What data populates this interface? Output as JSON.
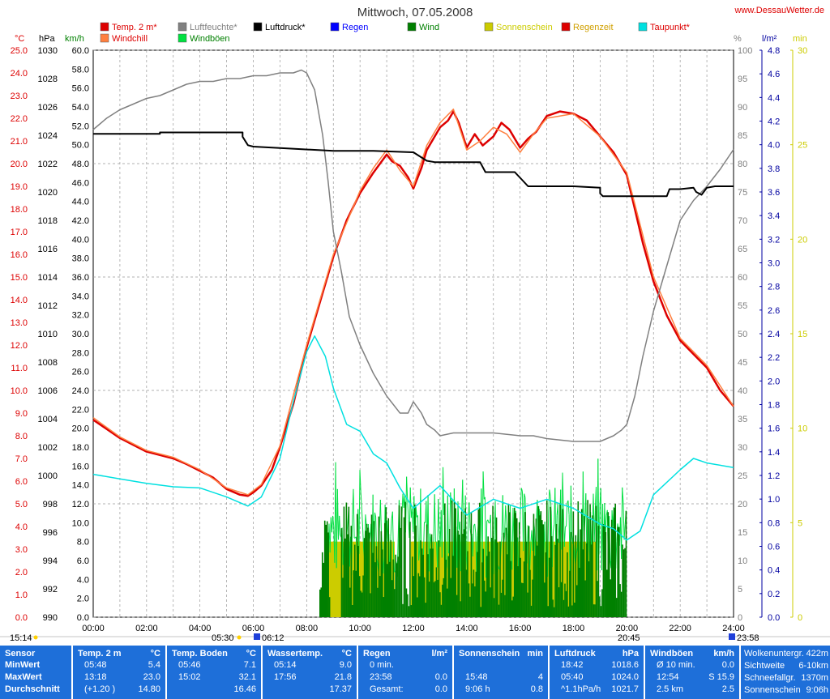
{
  "title": "Mittwoch, 07.05.2008",
  "site": "www.DessauWetter.de",
  "legend": [
    {
      "label": "Temp. 2 m*",
      "color": "#dd0000",
      "text_color": "#dd0000"
    },
    {
      "label": "Windchill",
      "color": "#ff8040",
      "text_color": "#dd0000"
    },
    {
      "label": "Luftfeuchte*",
      "color": "#808080",
      "text_color": "#808080"
    },
    {
      "label": "Windböen",
      "color": "#00e040",
      "text_color": "#008000"
    },
    {
      "label": "Luftdruck*",
      "color": "#000000",
      "text_color": "#000000"
    },
    {
      "label": "Regen",
      "color": "#0000ff",
      "text_color": "#0000ff"
    },
    {
      "label": "Wind",
      "color": "#008000",
      "text_color": "#008000"
    },
    {
      "label": "Sonnenschein",
      "color": "#cccc00",
      "text_color": "#cccc00"
    },
    {
      "label": "Regenzeit",
      "color": "#dd0000",
      "text_color": "#d0a000"
    },
    {
      "label": "Taupunkt*",
      "color": "#00e0e0",
      "text_color": "#dd0000"
    }
  ],
  "axis_units": {
    "temp": "°C",
    "pressure": "hPa",
    "wind": "km/h",
    "humidity": "%",
    "rain": "l/m²",
    "minutes": "min"
  },
  "axes": {
    "temp": {
      "min": 0.0,
      "max": 25.0,
      "step": 1.0,
      "color": "#dd0000"
    },
    "pressure": {
      "min": 990,
      "max": 1030,
      "step": 2,
      "color": "#000000"
    },
    "wind": {
      "min": 0.0,
      "max": 60.0,
      "step": 2.0,
      "color": "#000000"
    },
    "humidity": {
      "min": 0,
      "max": 100,
      "step": 5,
      "color": "#808080"
    },
    "rain": {
      "min": 0.0,
      "max": 4.8,
      "step": 0.2,
      "color": "#0000a0"
    },
    "minutes": {
      "min": 0,
      "max": 30,
      "step": 5,
      "color": "#cccc00"
    }
  },
  "x_ticks": [
    "00:00",
    "02:00",
    "04:00",
    "06:00",
    "08:00",
    "10:00",
    "12:00",
    "14:00",
    "16:00",
    "18:00",
    "20:00",
    "22:00",
    "24:00"
  ],
  "sun_markers": {
    "moonrise": "15:14",
    "sunrise": "05:30",
    "sunrise2": "06:12",
    "sunset": "20:45",
    "moonset": "23:58"
  },
  "chart_data": {
    "type": "line",
    "x_unit": "hours",
    "series": [
      {
        "name": "Temp. 2 m*",
        "axis": "temp",
        "color": "#dd0000",
        "x": [
          0,
          0.5,
          1,
          1.5,
          2,
          2.5,
          3,
          3.5,
          4,
          4.5,
          5,
          5.5,
          5.8,
          6,
          6.3,
          6.7,
          7,
          7.5,
          8,
          8.5,
          9,
          9.5,
          10,
          10.5,
          11,
          11.2,
          11.5,
          11.8,
          12,
          12.3,
          12.5,
          13,
          13.3,
          13.5,
          13.7,
          14,
          14.3,
          14.6,
          15,
          15.3,
          15.6,
          16,
          16.3,
          16.6,
          17,
          17.5,
          18,
          18.5,
          19,
          19.5,
          20,
          20.3,
          20.6,
          21,
          21.5,
          22,
          22.5,
          23,
          23.5,
          24
        ],
        "y": [
          8.7,
          8.3,
          7.9,
          7.6,
          7.3,
          7.15,
          7.0,
          6.75,
          6.45,
          6.15,
          5.65,
          5.4,
          5.35,
          5.5,
          5.8,
          6.5,
          7.5,
          9.4,
          11.9,
          13.9,
          15.9,
          17.5,
          18.7,
          19.6,
          20.4,
          20.1,
          19.9,
          19.4,
          18.9,
          19.8,
          20.6,
          21.6,
          21.9,
          22.3,
          21.8,
          20.7,
          21.3,
          20.8,
          21.2,
          21.8,
          21.5,
          20.7,
          21.1,
          21.4,
          22.1,
          22.3,
          22.2,
          21.9,
          21.2,
          20.5,
          19.5,
          18.0,
          16.5,
          14.8,
          13.3,
          12.2,
          11.6,
          11.0,
          10.0,
          9.3
        ]
      },
      {
        "name": "Windchill",
        "axis": "temp",
        "color": "#ff8040",
        "x": [
          0,
          1,
          2,
          3,
          4,
          5,
          5.8,
          6.3,
          7,
          8,
          9,
          10,
          10.5,
          11,
          11.5,
          12,
          12.5,
          13,
          13.5,
          14,
          14.5,
          15,
          15.5,
          16,
          16.5,
          17,
          18,
          19,
          20,
          21,
          22,
          23,
          24
        ],
        "y": [
          8.8,
          7.95,
          7.35,
          7.05,
          6.5,
          5.7,
          5.4,
          5.85,
          7.55,
          12.0,
          16.0,
          18.8,
          19.8,
          20.6,
          19.7,
          19.0,
          20.8,
          21.8,
          22.4,
          20.6,
          21.0,
          21.6,
          21.3,
          20.5,
          21.3,
          22.0,
          22.2,
          21.2,
          19.6,
          15.0,
          12.3,
          11.1,
          9.3
        ]
      },
      {
        "name": "Taupunkt*",
        "axis": "temp",
        "color": "#00e0e0",
        "x": [
          0,
          1,
          2,
          3,
          4,
          5,
          5.8,
          6.3,
          7,
          7.5,
          8,
          8.3,
          8.7,
          9,
          9.5,
          10,
          10.5,
          11,
          11.5,
          12,
          12.5,
          13,
          14,
          15,
          16,
          17,
          18,
          19,
          19.5,
          20,
          20.5,
          21,
          22,
          22.5,
          23,
          24
        ],
        "y": [
          6.3,
          6.1,
          5.9,
          5.75,
          5.7,
          5.3,
          4.9,
          5.3,
          7.0,
          9.5,
          11.7,
          12.4,
          11.5,
          10.1,
          8.5,
          8.2,
          7.2,
          6.8,
          5.7,
          4.8,
          5.3,
          5.8,
          4.5,
          5.2,
          4.8,
          5.2,
          4.8,
          4.1,
          3.9,
          3.4,
          3.8,
          5.4,
          6.5,
          7.0,
          6.8,
          6.6
        ]
      },
      {
        "name": "Luftfeuchte*",
        "axis": "humidity",
        "color": "#808080",
        "x": [
          0,
          0.5,
          1,
          1.5,
          2,
          2.5,
          3,
          3.5,
          4,
          4.5,
          5,
          5.5,
          6,
          6.5,
          7,
          7.5,
          7.8,
          8,
          8.3,
          8.6,
          8.8,
          9,
          9.3,
          9.6,
          10,
          10.5,
          11,
          11.5,
          11.8,
          12,
          12.3,
          12.5,
          12.8,
          13,
          13.5,
          14,
          14.5,
          15,
          16,
          16.5,
          17,
          18,
          18.5,
          19,
          19.5,
          19.8,
          20,
          20.3,
          20.6,
          21,
          21.5,
          22,
          22.5,
          23,
          23.5,
          24
        ],
        "y": [
          86,
          88,
          89.5,
          90.5,
          91.5,
          92,
          93,
          94,
          94.5,
          94.5,
          95,
          95,
          95.5,
          95.5,
          96,
          96,
          96.5,
          96,
          93,
          85,
          77,
          68,
          61,
          53,
          48,
          43,
          39,
          36,
          36,
          38,
          36,
          34,
          33,
          32,
          32.5,
          32.5,
          32.5,
          32.5,
          32,
          32,
          31.5,
          31,
          31,
          31,
          32,
          33,
          34,
          39,
          46,
          54,
          62,
          70,
          73.5,
          76,
          79,
          82.5
        ]
      },
      {
        "name": "Luftdruck*",
        "axis": "pressure",
        "color": "#000000",
        "x": [
          0,
          2.5,
          2.5,
          5.6,
          5.6,
          5.8,
          6,
          7,
          9,
          10.5,
          12,
          12.5,
          12.8,
          14.5,
          14.7,
          15.8,
          16,
          16.3,
          18,
          18,
          19,
          19,
          19.1,
          20,
          21,
          21.5,
          21.6,
          22,
          22.5,
          22.6,
          22.8,
          23,
          23.3,
          24
        ],
        "y": [
          1024.1,
          1024.1,
          1024.2,
          1024.2,
          1023.9,
          1023.3,
          1023.2,
          1023.1,
          1022.9,
          1022.9,
          1022.8,
          1022.2,
          1022.1,
          1022.1,
          1021.4,
          1021.4,
          1021.0,
          1020.4,
          1020.4,
          1020.4,
          1020.3,
          1019.9,
          1019.7,
          1019.7,
          1019.7,
          1019.7,
          1020.2,
          1020.2,
          1020.3,
          1020.0,
          1019.8,
          1020.3,
          1020.4,
          1020.4
        ]
      }
    ],
    "gusts_kmh": {
      "name": "Windböen",
      "axis": "wind",
      "color": "#00e040",
      "start": 8.7,
      "end": 20.0,
      "base_min": 4,
      "base_max": 14,
      "max": 17.2
    },
    "wind_kmh": {
      "name": "Wind",
      "axis": "wind",
      "color": "#008000",
      "start": 8.5,
      "end": 20.0,
      "max": 12.5
    },
    "sunshine_min": [
      {
        "from": 8.7,
        "to": 11.3,
        "value": 4
      },
      {
        "from": 11.9,
        "to": 18.9,
        "value": 4
      }
    ],
    "rain": []
  },
  "stats": {
    "sensor_label": "Sensor",
    "row_labels": [
      "MinWert",
      "MaxWert",
      "Durchschnitt"
    ],
    "temp2m": {
      "header": "Temp. 2 m",
      "unit": "°C",
      "rows": [
        [
          "05:48",
          "5.4"
        ],
        [
          "13:18",
          "23.0"
        ],
        [
          "(+1.20 )",
          "14.80"
        ]
      ]
    },
    "tempboden": {
      "header": "Temp. Boden",
      "unit": "°C",
      "rows": [
        [
          "05:46",
          "7.1"
        ],
        [
          "15:02",
          "32.1"
        ],
        [
          "",
          "16.46"
        ]
      ]
    },
    "wasser": {
      "header": "Wassertemp.",
      "unit": "°C",
      "rows": [
        [
          "05:14",
          "9.0"
        ],
        [
          "17:56",
          "21.8"
        ],
        [
          "",
          "17.37"
        ]
      ]
    },
    "regen": {
      "header": "Regen",
      "unit": "l/m²",
      "rows": [
        [
          "0 min.",
          ""
        ],
        [
          "23:58",
          "0.0"
        ],
        [
          "Gesamt:",
          "0.0"
        ]
      ]
    },
    "sonne": {
      "header": "Sonnenschein",
      "unit": "min",
      "rows": [
        [
          "",
          ""
        ],
        [
          "15:48",
          "4"
        ],
        [
          "9:06 h",
          "0.8"
        ]
      ]
    },
    "luftdruck": {
      "header": "Luftdruck",
      "unit": "hPa",
      "rows": [
        [
          "18:42",
          "1018.6"
        ],
        [
          "05:40",
          "1024.0"
        ],
        [
          "^1.1hPa/h",
          "1021.7"
        ]
      ]
    },
    "windboen": {
      "header": "Windböen",
      "unit": "km/h",
      "rows": [
        [
          "Ø 10 min.",
          "0.0"
        ],
        [
          "12:54",
          "S 15.9"
        ],
        [
          "2.5 km",
          "2.5"
        ]
      ]
    },
    "extra": [
      [
        "Wolkenuntergr.",
        "422m"
      ],
      [
        "Sichtweite",
        "6-10km"
      ],
      [
        "Schneefallgr.",
        "1370m"
      ],
      [
        "Sonnenschein",
        "9:06h"
      ]
    ]
  }
}
